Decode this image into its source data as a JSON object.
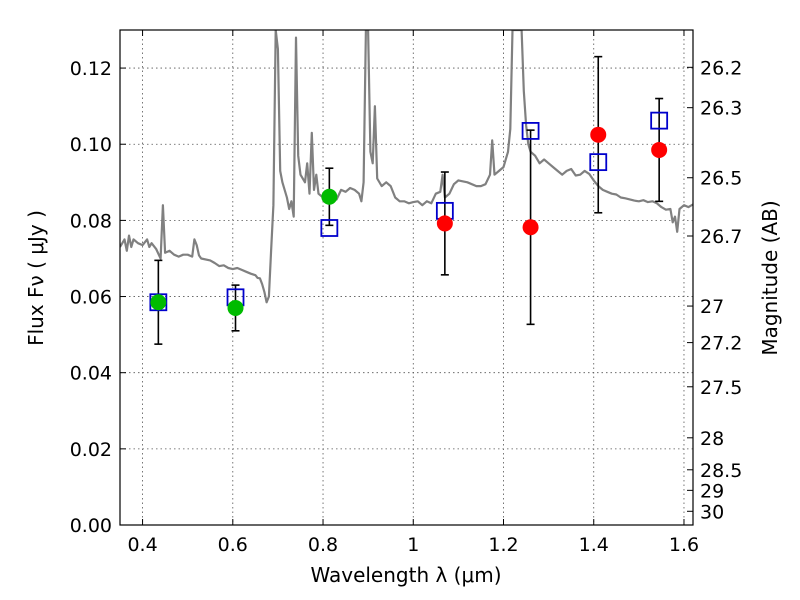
{
  "chart_data": {
    "type": "scatter",
    "title": "",
    "xlabel": "Wavelength  λ (μm)",
    "ylabel": "Flux  Fν  ( μJy )",
    "ylabel_right": "Magnitude (AB)",
    "xlim": [
      0.35,
      1.62
    ],
    "ylim": [
      0.0,
      0.13
    ],
    "grid": true,
    "x_ticks": [
      0.4,
      0.6,
      0.8,
      1.0,
      1.2,
      1.4,
      1.6
    ],
    "x_tick_labels": [
      "0.4",
      "0.6",
      "0.8",
      "1",
      "1.2",
      "1.4",
      "1.6"
    ],
    "y_ticks": [
      0.0,
      0.02,
      0.04,
      0.06,
      0.08,
      0.1,
      0.12
    ],
    "y_tick_labels": [
      "0.00",
      "0.02",
      "0.04",
      "0.06",
      "0.08",
      "0.10",
      "0.12"
    ],
    "right_ticks": [
      {
        "label": "26.2",
        "flux": 0.1202
      },
      {
        "label": "26.3",
        "flux": 0.1096
      },
      {
        "label": "26.5",
        "flux": 0.0912
      },
      {
        "label": "26.7",
        "flux": 0.0759
      },
      {
        "label": "27",
        "flux": 0.0575
      },
      {
        "label": "27.2",
        "flux": 0.0479
      },
      {
        "label": "27.5",
        "flux": 0.0363
      },
      {
        "label": "28",
        "flux": 0.0229
      },
      {
        "label": "28.5",
        "flux": 0.0145
      },
      {
        "label": "29",
        "flux": 0.0091
      },
      {
        "label": "30",
        "flux": 0.0036
      }
    ],
    "series": [
      {
        "marker": "circle",
        "color": "#00bb00",
        "points": [
          {
            "x": 0.435,
            "y": 0.0585,
            "err": 0.011
          },
          {
            "x": 0.606,
            "y": 0.057,
            "err": 0.006
          },
          {
            "x": 0.814,
            "y": 0.0862,
            "err": 0.0075
          }
        ]
      },
      {
        "marker": "circle",
        "color": "#ff0000",
        "points": [
          {
            "x": 1.07,
            "y": 0.0792,
            "err": 0.0135
          },
          {
            "x": 1.26,
            "y": 0.0782,
            "err": 0.0255
          },
          {
            "x": 1.41,
            "y": 0.1025,
            "err": 0.0205
          },
          {
            "x": 1.545,
            "y": 0.0985,
            "err": 0.0135
          }
        ]
      },
      {
        "marker": "open-square",
        "color": "#0000cc",
        "points": [
          {
            "x": 0.435,
            "y": 0.0585
          },
          {
            "x": 0.606,
            "y": 0.0598
          },
          {
            "x": 0.814,
            "y": 0.078
          },
          {
            "x": 1.07,
            "y": 0.0825
          },
          {
            "x": 1.26,
            "y": 0.1035
          },
          {
            "x": 1.41,
            "y": 0.0953
          },
          {
            "x": 1.545,
            "y": 0.1062
          }
        ]
      }
    ],
    "model_spectrum": {
      "color": "#808080",
      "points": [
        [
          0.35,
          0.073
        ],
        [
          0.36,
          0.075
        ],
        [
          0.365,
          0.072
        ],
        [
          0.37,
          0.076
        ],
        [
          0.375,
          0.073
        ],
        [
          0.38,
          0.075
        ],
        [
          0.39,
          0.074
        ],
        [
          0.4,
          0.0735
        ],
        [
          0.41,
          0.075
        ],
        [
          0.415,
          0.073
        ],
        [
          0.42,
          0.074
        ],
        [
          0.43,
          0.0725
        ],
        [
          0.44,
          0.07
        ],
        [
          0.445,
          0.084
        ],
        [
          0.45,
          0.0715
        ],
        [
          0.46,
          0.072
        ],
        [
          0.47,
          0.071
        ],
        [
          0.48,
          0.0705
        ],
        [
          0.49,
          0.071
        ],
        [
          0.5,
          0.071
        ],
        [
          0.51,
          0.0705
        ],
        [
          0.515,
          0.075
        ],
        [
          0.52,
          0.0735
        ],
        [
          0.525,
          0.0708
        ],
        [
          0.53,
          0.07
        ],
        [
          0.55,
          0.0695
        ],
        [
          0.56,
          0.0688
        ],
        [
          0.57,
          0.068
        ],
        [
          0.58,
          0.0682
        ],
        [
          0.59,
          0.0675
        ],
        [
          0.6,
          0.0672
        ],
        [
          0.61,
          0.0675
        ],
        [
          0.62,
          0.067
        ],
        [
          0.63,
          0.0665
        ],
        [
          0.64,
          0.066
        ],
        [
          0.65,
          0.0656
        ],
        [
          0.655,
          0.0649
        ],
        [
          0.66,
          0.0648
        ],
        [
          0.665,
          0.0633
        ],
        [
          0.67,
          0.0612
        ],
        [
          0.675,
          0.0585
        ],
        [
          0.68,
          0.06
        ],
        [
          0.685,
          0.072
        ],
        [
          0.69,
          0.084
        ],
        [
          0.695,
          0.13
        ],
        [
          0.7,
          0.125
        ],
        [
          0.705,
          0.093
        ],
        [
          0.71,
          0.09
        ],
        [
          0.72,
          0.086
        ],
        [
          0.725,
          0.083
        ],
        [
          0.73,
          0.085
        ],
        [
          0.735,
          0.081
        ],
        [
          0.74,
          0.128
        ],
        [
          0.745,
          0.097
        ],
        [
          0.75,
          0.092
        ],
        [
          0.76,
          0.09
        ],
        [
          0.765,
          0.095
        ],
        [
          0.77,
          0.087
        ],
        [
          0.775,
          0.103
        ],
        [
          0.78,
          0.088
        ],
        [
          0.785,
          0.092
        ],
        [
          0.79,
          0.087
        ],
        [
          0.8,
          0.086
        ],
        [
          0.81,
          0.0868
        ],
        [
          0.82,
          0.087
        ],
        [
          0.83,
          0.0855
        ],
        [
          0.84,
          0.088
        ],
        [
          0.85,
          0.0875
        ],
        [
          0.86,
          0.0885
        ],
        [
          0.87,
          0.088
        ],
        [
          0.88,
          0.087
        ],
        [
          0.885,
          0.085
        ],
        [
          0.89,
          0.09
        ],
        [
          0.895,
          0.13
        ],
        [
          0.9,
          0.13
        ],
        [
          0.905,
          0.098
        ],
        [
          0.91,
          0.095
        ],
        [
          0.915,
          0.11
        ],
        [
          0.92,
          0.091
        ],
        [
          0.93,
          0.089
        ],
        [
          0.94,
          0.09
        ],
        [
          0.95,
          0.089
        ],
        [
          0.96,
          0.086
        ],
        [
          0.97,
          0.085
        ],
        [
          0.98,
          0.085
        ],
        [
          0.99,
          0.0845
        ],
        [
          1.0,
          0.0848
        ],
        [
          1.01,
          0.085
        ],
        [
          1.02,
          0.084
        ],
        [
          1.03,
          0.085
        ],
        [
          1.04,
          0.0845
        ],
        [
          1.05,
          0.087
        ],
        [
          1.06,
          0.0875
        ],
        [
          1.065,
          0.092
        ],
        [
          1.07,
          0.086
        ],
        [
          1.08,
          0.087
        ],
        [
          1.09,
          0.0895
        ],
        [
          1.1,
          0.0905
        ],
        [
          1.12,
          0.09
        ],
        [
          1.14,
          0.089
        ],
        [
          1.15,
          0.089
        ],
        [
          1.16,
          0.0895
        ],
        [
          1.17,
          0.092
        ],
        [
          1.175,
          0.101
        ],
        [
          1.18,
          0.092
        ],
        [
          1.19,
          0.093
        ],
        [
          1.2,
          0.094
        ],
        [
          1.21,
          0.098
        ],
        [
          1.215,
          0.104
        ],
        [
          1.22,
          0.13
        ],
        [
          1.24,
          0.13
        ],
        [
          1.245,
          0.114
        ],
        [
          1.25,
          0.105
        ],
        [
          1.255,
          0.1
        ],
        [
          1.26,
          0.098
        ],
        [
          1.27,
          0.097
        ],
        [
          1.28,
          0.095
        ],
        [
          1.29,
          0.096
        ],
        [
          1.3,
          0.095
        ],
        [
          1.31,
          0.094
        ],
        [
          1.32,
          0.093
        ],
        [
          1.33,
          0.092
        ],
        [
          1.34,
          0.093
        ],
        [
          1.35,
          0.0935
        ],
        [
          1.36,
          0.0918
        ],
        [
          1.37,
          0.092
        ],
        [
          1.38,
          0.093
        ],
        [
          1.39,
          0.0922
        ],
        [
          1.4,
          0.0905
        ],
        [
          1.41,
          0.089
        ],
        [
          1.42,
          0.088
        ],
        [
          1.43,
          0.0875
        ],
        [
          1.44,
          0.087
        ],
        [
          1.45,
          0.0868
        ],
        [
          1.46,
          0.086
        ],
        [
          1.47,
          0.0858
        ],
        [
          1.48,
          0.0855
        ],
        [
          1.49,
          0.0852
        ],
        [
          1.5,
          0.085
        ],
        [
          1.51,
          0.0853
        ],
        [
          1.52,
          0.0848
        ],
        [
          1.53,
          0.085
        ],
        [
          1.54,
          0.0845
        ],
        [
          1.55,
          0.0835
        ],
        [
          1.56,
          0.0828
        ],
        [
          1.57,
          0.083
        ],
        [
          1.575,
          0.0795
        ],
        [
          1.58,
          0.081
        ],
        [
          1.585,
          0.077
        ],
        [
          1.59,
          0.083
        ],
        [
          1.6,
          0.084
        ],
        [
          1.61,
          0.0835
        ],
        [
          1.62,
          0.0842
        ]
      ]
    }
  }
}
